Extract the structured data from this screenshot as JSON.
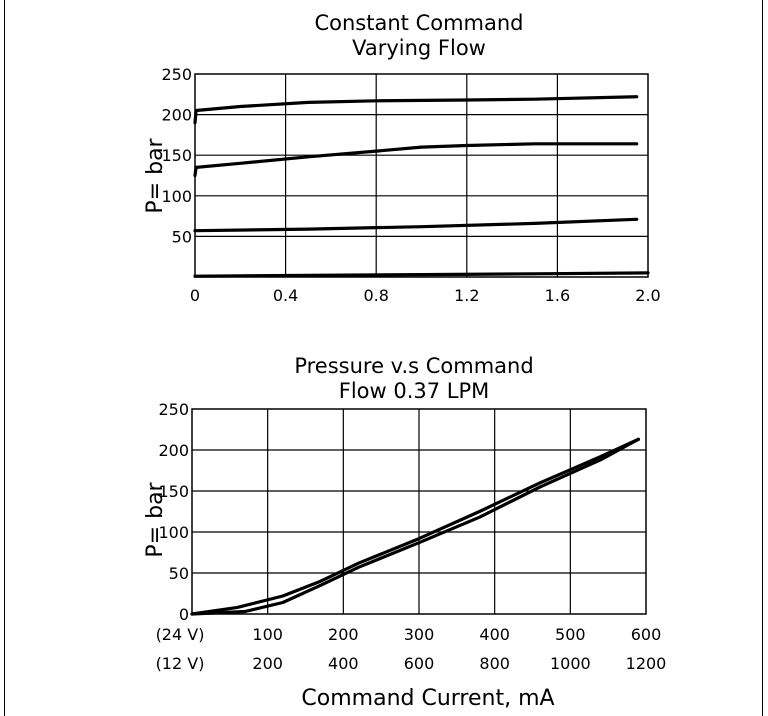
{
  "chart_data": [
    {
      "type": "line",
      "title": [
        "Constant Command",
        "Varying Flow"
      ],
      "ylabel": "P= bar",
      "xlabel": "",
      "xlim": [
        0,
        2.0
      ],
      "ylim": [
        0,
        250
      ],
      "grid": true,
      "x_ticks": [
        "0",
        "0.4",
        "0.8",
        "1.2",
        "1.6",
        "2.0"
      ],
      "y_ticks": [
        "50",
        "100",
        "150",
        "200",
        "250"
      ],
      "series": [
        {
          "x": [
            0,
            0.005,
            0.2,
            0.5,
            0.8,
            1.2,
            1.5,
            1.95
          ],
          "y": [
            190,
            205,
            210,
            215,
            217,
            218,
            219,
            222
          ]
        },
        {
          "x": [
            0,
            0.005,
            0.2,
            0.5,
            0.8,
            1.0,
            1.2,
            1.5,
            1.95
          ],
          "y": [
            125,
            135,
            140,
            148,
            155,
            160,
            162,
            164,
            164
          ]
        },
        {
          "x": [
            0,
            0.5,
            1.0,
            1.5,
            1.95
          ],
          "y": [
            57,
            59,
            62,
            66,
            71
          ]
        },
        {
          "x": [
            0,
            0.5,
            1.0,
            1.5,
            2.0
          ],
          "y": [
            1,
            2,
            3,
            4,
            5
          ]
        }
      ]
    },
    {
      "type": "line",
      "title": [
        "Pressure v.s Command",
        "Flow 0.37 LPM"
      ],
      "ylabel": "P= bar",
      "xlabel": "Command Current, mA",
      "xlim": [
        0,
        600
      ],
      "ylim": [
        0,
        250
      ],
      "grid": true,
      "x_ticks_24v": [
        "(24 V)",
        "100",
        "200",
        "300",
        "400",
        "500",
        "600"
      ],
      "x_ticks_12v": [
        "(12 V)",
        "200",
        "400",
        "600",
        "800",
        "1000",
        "1200"
      ],
      "y_ticks": [
        "0",
        "50",
        "100",
        "150",
        "200",
        "250"
      ],
      "series": [
        {
          "x": [
            0,
            60,
            120,
            170,
            220,
            300,
            380,
            460,
            540,
            590
          ],
          "y": [
            0,
            8,
            22,
            40,
            62,
            92,
            125,
            160,
            192,
            213
          ]
        },
        {
          "x": [
            0,
            70,
            120,
            170,
            220,
            300,
            380,
            460,
            540,
            590
          ],
          "y": [
            0,
            3,
            14,
            35,
            57,
            87,
            118,
            155,
            188,
            213
          ]
        }
      ]
    }
  ]
}
